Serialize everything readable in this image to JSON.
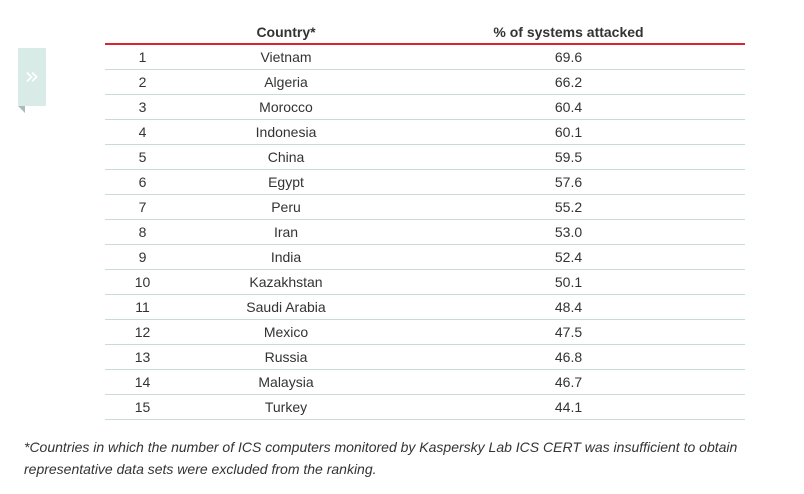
{
  "side_tab": {
    "icon": "double-chevron-right-icon",
    "glyph": "»",
    "color": "#d9ebe7"
  },
  "table": {
    "headers": {
      "rank": "",
      "country": "Country*",
      "percent": "% of systems attacked"
    },
    "accent_color": "#d7262e",
    "rows": [
      {
        "rank": "1",
        "country": "Vietnam",
        "percent": "69.6"
      },
      {
        "rank": "2",
        "country": "Algeria",
        "percent": "66.2"
      },
      {
        "rank": "3",
        "country": "Morocco",
        "percent": "60.4"
      },
      {
        "rank": "4",
        "country": "Indonesia",
        "percent": "60.1"
      },
      {
        "rank": "5",
        "country": "China",
        "percent": "59.5"
      },
      {
        "rank": "6",
        "country": "Egypt",
        "percent": "57.6"
      },
      {
        "rank": "7",
        "country": "Peru",
        "percent": "55.2"
      },
      {
        "rank": "8",
        "country": "Iran",
        "percent": "53.0"
      },
      {
        "rank": "9",
        "country": "India",
        "percent": "52.4"
      },
      {
        "rank": "10",
        "country": "Kazakhstan",
        "percent": "50.1"
      },
      {
        "rank": "11",
        "country": "Saudi Arabia",
        "percent": "48.4"
      },
      {
        "rank": "12",
        "country": "Mexico",
        "percent": "47.5"
      },
      {
        "rank": "13",
        "country": "Russia",
        "percent": "46.8"
      },
      {
        "rank": "14",
        "country": "Malaysia",
        "percent": "46.7"
      },
      {
        "rank": "15",
        "country": "Turkey",
        "percent": "44.1"
      }
    ]
  },
  "footnote": "*Countries in which the number of ICS computers monitored by Kaspersky Lab ICS CERT was insufficient to obtain representative data sets were excluded from the ranking."
}
